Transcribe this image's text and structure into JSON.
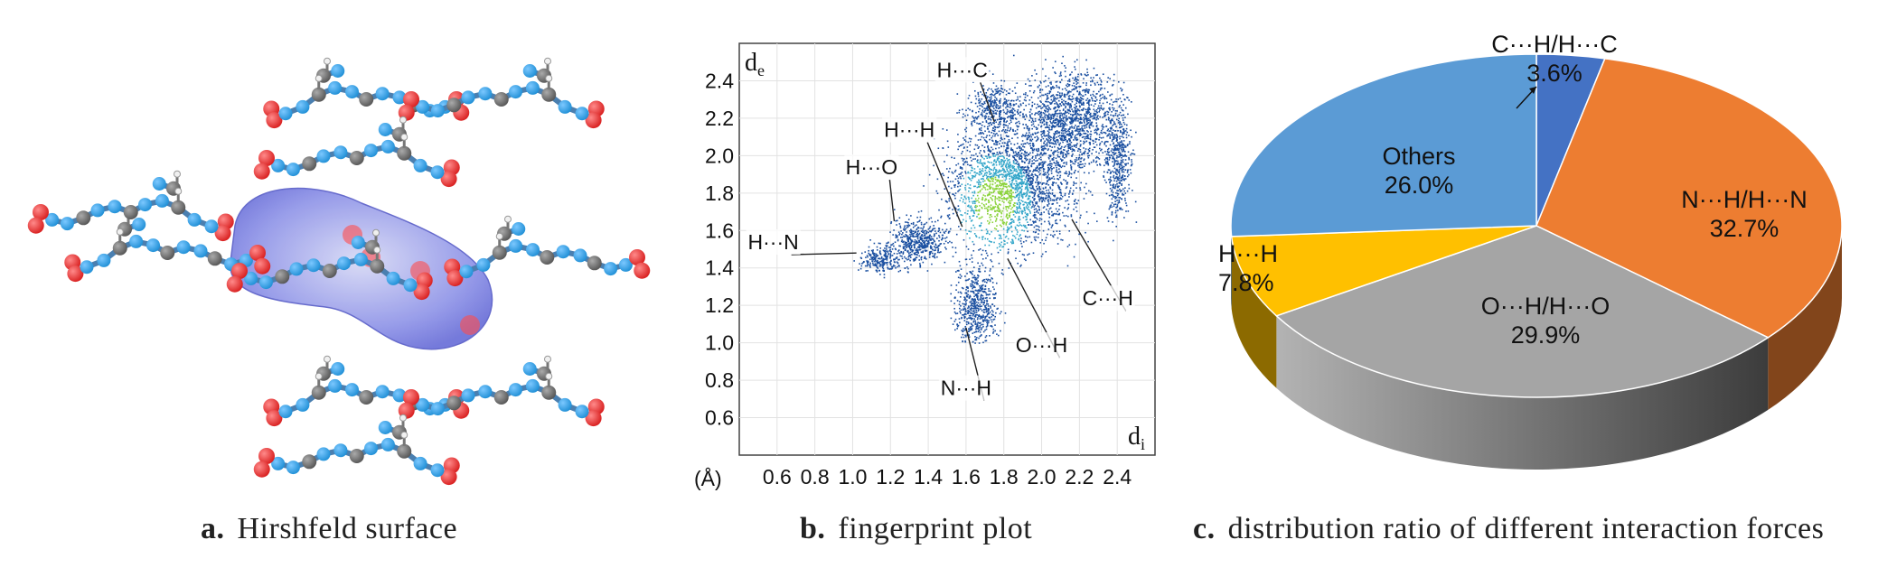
{
  "panels": {
    "a": {
      "letter": "a.",
      "caption": "Hirshfeld surface"
    },
    "b": {
      "letter": "b.",
      "caption": "fingerprint plot"
    },
    "c": {
      "letter": "c.",
      "caption": "distribution ratio of different interaction forces"
    }
  },
  "colors": {
    "nitrogen": "#1f8fd6",
    "oxygen": "#d81e1e",
    "carbon": "#555555",
    "hydrogen": "#f0f0f0",
    "surface": "#8f94e8",
    "fp_low": "#1a4fa0",
    "fp_high": "#8ad23a"
  },
  "chart_data": [
    {
      "type": "scatter",
      "title": "",
      "xlabel": "di",
      "ylabel": "de",
      "unit_label": "(Å)",
      "xlim": [
        0.4,
        2.6
      ],
      "ylim": [
        0.4,
        2.6
      ],
      "x_ticks": [
        "0.6",
        "0.8",
        "1.0",
        "1.2",
        "1.4",
        "1.6",
        "1.8",
        "2.0",
        "2.2",
        "2.4"
      ],
      "y_ticks": [
        "2.4",
        "2.2",
        "2.0",
        "1.8",
        "1.6",
        "1.4",
        "1.2",
        "1.0",
        "0.8",
        "0.6"
      ],
      "grid": true,
      "annotations": [
        {
          "text": "H···C",
          "x": 1.72,
          "y": 2.18
        },
        {
          "text": "H···H",
          "x": 1.58,
          "y": 1.62
        },
        {
          "text": "H···O",
          "x": 1.22,
          "y": 1.65
        },
        {
          "text": "H···N",
          "x": 1.0,
          "y": 1.48
        },
        {
          "text": "C···H",
          "x": 2.16,
          "y": 1.66
        },
        {
          "text": "O···H",
          "x": 1.82,
          "y": 1.45
        },
        {
          "text": "N···H",
          "x": 1.6,
          "y": 1.08
        }
      ]
    },
    {
      "type": "pie",
      "title": "",
      "slices": [
        {
          "label": "C···H/H···C",
          "value": 3.6,
          "pct": "3.6%",
          "color": "#4472c4"
        },
        {
          "label": "N···H/H···N",
          "value": 32.7,
          "pct": "32.7%",
          "color": "#ed7d31"
        },
        {
          "label": "O···H/H···O",
          "value": 29.9,
          "pct": "29.9%",
          "color": "#a5a5a5"
        },
        {
          "label": "H···H",
          "value": 7.8,
          "pct": "7.8%",
          "color": "#ffc000"
        },
        {
          "label": "Others",
          "value": 26.0,
          "pct": "26.0%",
          "color": "#5b9bd5"
        }
      ]
    }
  ]
}
